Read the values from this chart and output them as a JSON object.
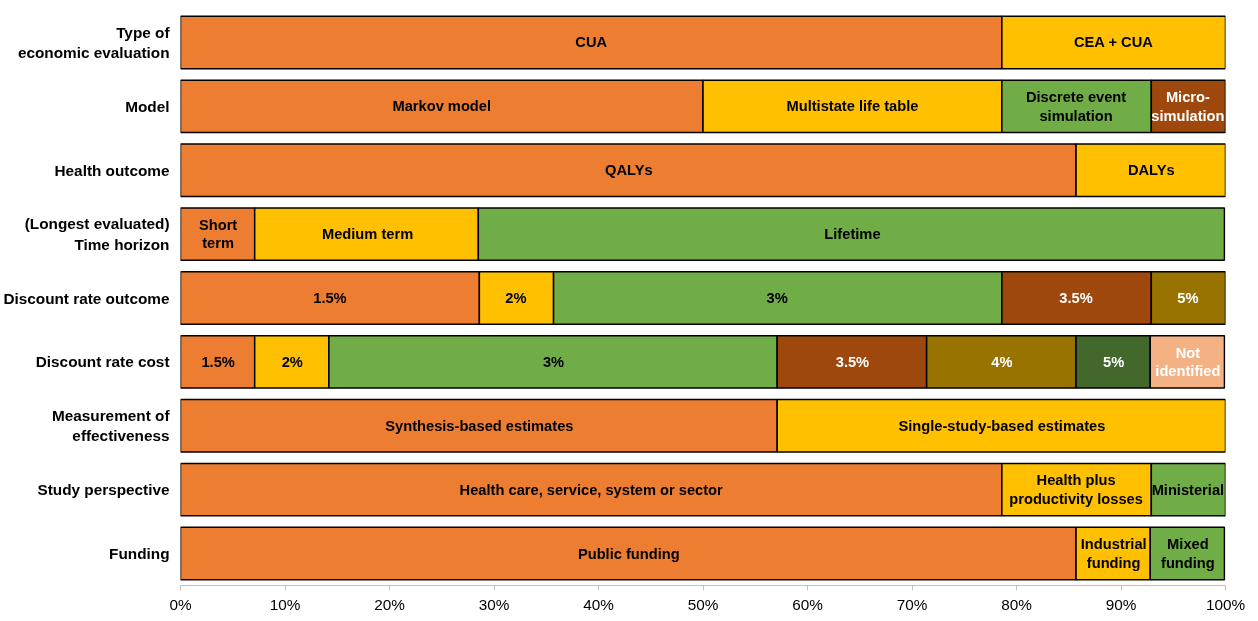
{
  "chart_data": {
    "type": "bar",
    "orientation": "horizontal",
    "stacked": true,
    "grid": false,
    "categories": [
      "Type of\neconomic evaluation",
      "Model",
      "Health outcome",
      "(Longest evaluated)\nTime horizon",
      "Discount rate outcome",
      "Discount rate cost",
      "Measurement of\neffectiveness",
      "Study perspective",
      "Funding"
    ],
    "xlim": [
      0,
      100
    ],
    "xticks": [
      {
        "value": 0,
        "label": "0%"
      },
      {
        "value": 10,
        "label": "10%"
      },
      {
        "value": 20,
        "label": "20%"
      },
      {
        "value": 30,
        "label": "30%"
      },
      {
        "value": 40,
        "label": "40%"
      },
      {
        "value": 50,
        "label": "50%"
      },
      {
        "value": 60,
        "label": "60%"
      },
      {
        "value": 70,
        "label": "70%"
      },
      {
        "value": 80,
        "label": "80%"
      },
      {
        "value": 90,
        "label": "90%"
      },
      {
        "value": 100,
        "label": "100%"
      }
    ],
    "series": [
      {
        "color": "#ed7d31",
        "values": [
          78.6,
          50,
          85.7,
          7.1,
          28.6,
          7.1,
          57.1,
          78.6,
          85.7
        ]
      },
      {
        "color": "#ffc000",
        "values": [
          21.4,
          28.6,
          14.3,
          21.4,
          7.1,
          7.1,
          42.9,
          14.3,
          7.1
        ]
      },
      {
        "color": "#70ad47",
        "values": [
          null,
          14.3,
          null,
          71.4,
          42.9,
          42.9,
          null,
          7.1,
          7.1
        ]
      },
      {
        "color": "#9e480e",
        "values": [
          null,
          7.1,
          null,
          null,
          14.3,
          14.3,
          null,
          null,
          null
        ]
      },
      {
        "color": "#997300",
        "values": [
          null,
          null,
          null,
          null,
          7.1,
          14.3,
          null,
          null,
          null
        ]
      },
      {
        "color": "#43682b",
        "values": [
          null,
          null,
          null,
          null,
          null,
          7.1,
          null,
          null,
          null
        ]
      },
      {
        "color": "#f4b183",
        "values": [
          null,
          null,
          null,
          null,
          null,
          7.1,
          null,
          null,
          null
        ]
      }
    ],
    "annotations": [
      {
        "text": "CUA",
        "x": 39.3,
        "y": "Type of\neconomic evaluation"
      },
      {
        "text": "CEA + CUA",
        "x": 89.3,
        "y": "Type of\neconomic evaluation"
      },
      {
        "text": "Markov model",
        "x": 25,
        "y": "Model"
      },
      {
        "text": "Multistate life table",
        "x": 64.3,
        "y": "Model"
      },
      {
        "text": "Discrete event\nsimulation",
        "x": 85.7,
        "y": "Model"
      },
      {
        "text": "Micro-\nsimulation",
        "x": 96.4,
        "y": "Model"
      },
      {
        "text": "QALYs",
        "x": 42.9,
        "y": "Health outcome"
      },
      {
        "text": "DALYs",
        "x": 92.9,
        "y": "Health outcome"
      },
      {
        "text": "Short\nterm",
        "x": 3.6,
        "y": "(Longest evaluated)\nTime horizon"
      },
      {
        "text": "Medium term",
        "x": 17.9,
        "y": "(Longest evaluated)\nTime horizon"
      },
      {
        "text": "Lifetime",
        "x": 64.3,
        "y": "(Longest evaluated)\nTime horizon"
      },
      {
        "text": "1.5%",
        "x": 14.3,
        "y": "Discount rate outcome"
      },
      {
        "text": "2%",
        "x": 32.1,
        "y": "Discount rate outcome"
      },
      {
        "text": "3%",
        "x": 57.1,
        "y": "Discount rate outcome"
      },
      {
        "text": "3.5%",
        "x": 85.7,
        "y": "Discount rate outcome"
      },
      {
        "text": "5%",
        "x": 96.4,
        "y": "Discount rate outcome"
      },
      {
        "text": "1.5%",
        "x": 3.6,
        "y": "Discount rate cost"
      },
      {
        "text": "2%",
        "x": 10.7,
        "y": "Discount rate cost"
      },
      {
        "text": "3%",
        "x": 35.7,
        "y": "Discount rate cost"
      },
      {
        "text": "3.5%",
        "x": 64.3,
        "y": "Discount rate cost"
      },
      {
        "text": "4%",
        "x": 78.6,
        "y": "Discount rate cost"
      },
      {
        "text": "5%",
        "x": 89.3,
        "y": "Discount rate cost"
      },
      {
        "text": "Not\nidentified",
        "x": 96.4,
        "y": "Discount rate cost"
      },
      {
        "text": "Synthesis-based estimates",
        "x": 28.6,
        "y": "Measurement of\neffectiveness"
      },
      {
        "text": "Single-study-based estimates",
        "x": 78.6,
        "y": "Measurement of\neffectiveness"
      },
      {
        "text": "Health care, service, system or sector",
        "x": 39.3,
        "y": "Study perspective"
      },
      {
        "text": "Health plus\nproductivity losses",
        "x": 85.7,
        "y": "Study perspective"
      },
      {
        "text": "Ministerial",
        "x": 96.4,
        "y": "Study perspective"
      },
      {
        "text": "Public funding",
        "x": 42.9,
        "y": "Funding"
      },
      {
        "text": "Industrial\nfunding",
        "x": 89.3,
        "y": "Funding"
      },
      {
        "text": "Mixed\nfunding",
        "x": 96.4,
        "y": "Funding"
      }
    ]
  }
}
